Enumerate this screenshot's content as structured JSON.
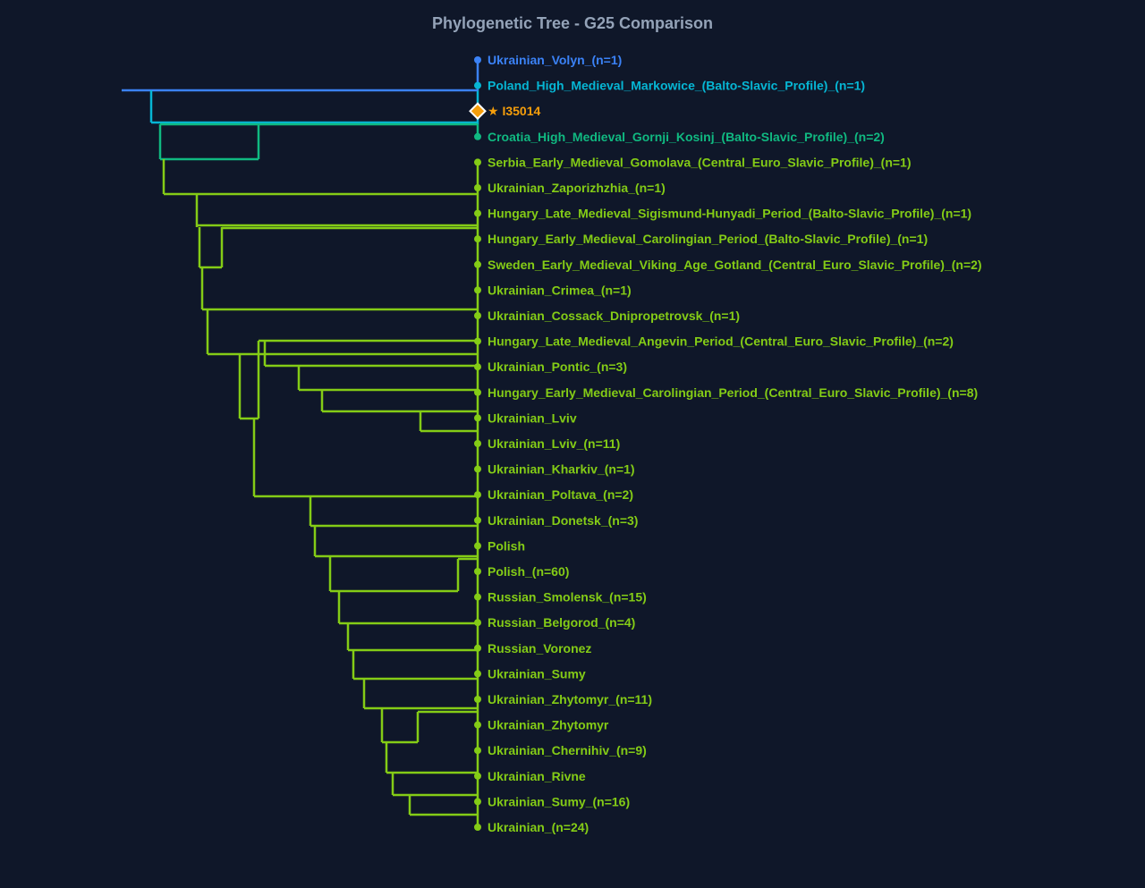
{
  "title": "Phylogenetic Tree - G25 Comparison",
  "colors": {
    "background": "#0f1729",
    "blue": "#3b82f6",
    "cyan": "#06b6d4",
    "teal": "#10b981",
    "green": "#84cc16",
    "target": "#f59e0b"
  },
  "leaves": [
    {
      "label": "Ukrainian_Volyn_(n=1)",
      "color": "#3b82f6"
    },
    {
      "label": "Poland_High_Medieval_Markowice_(Balto-Slavic_Profile)_(n=1)",
      "color": "#06b6d4"
    },
    {
      "label": "★ I35014",
      "color": "#f59e0b",
      "target": true,
      "marker": "diamond-icon"
    },
    {
      "label": "Croatia_High_Medieval_Gornji_Kosinj_(Balto-Slavic_Profile)_(n=2)",
      "color": "#10b981"
    },
    {
      "label": "Serbia_Early_Medieval_Gomolava_(Central_Euro_Slavic_Profile)_(n=1)",
      "color": "#84cc16"
    },
    {
      "label": "Ukrainian_Zaporizhzhia_(n=1)",
      "color": "#84cc16"
    },
    {
      "label": "Hungary_Late_Medieval_Sigismund-Hunyadi_Period_(Balto-Slavic_Profile)_(n=1)",
      "color": "#84cc16"
    },
    {
      "label": "Hungary_Early_Medieval_Carolingian_Period_(Balto-Slavic_Profile)_(n=1)",
      "color": "#84cc16"
    },
    {
      "label": "Sweden_Early_Medieval_Viking_Age_Gotland_(Central_Euro_Slavic_Profile)_(n=2)",
      "color": "#84cc16"
    },
    {
      "label": "Ukrainian_Crimea_(n=1)",
      "color": "#84cc16"
    },
    {
      "label": "Ukrainian_Cossack_Dnipropetrovsk_(n=1)",
      "color": "#84cc16"
    },
    {
      "label": "Hungary_Late_Medieval_Angevin_Period_(Central_Euro_Slavic_Profile)_(n=2)",
      "color": "#84cc16"
    },
    {
      "label": "Ukrainian_Pontic_(n=3)",
      "color": "#84cc16"
    },
    {
      "label": "Hungary_Early_Medieval_Carolingian_Period_(Central_Euro_Slavic_Profile)_(n=8)",
      "color": "#84cc16"
    },
    {
      "label": "Ukrainian_Lviv",
      "color": "#84cc16"
    },
    {
      "label": "Ukrainian_Lviv_(n=11)",
      "color": "#84cc16"
    },
    {
      "label": "Ukrainian_Kharkiv_(n=1)",
      "color": "#84cc16"
    },
    {
      "label": "Ukrainian_Poltava_(n=2)",
      "color": "#84cc16"
    },
    {
      "label": "Ukrainian_Donetsk_(n=3)",
      "color": "#84cc16"
    },
    {
      "label": "Polish",
      "color": "#84cc16"
    },
    {
      "label": "Polish_(n=60)",
      "color": "#84cc16"
    },
    {
      "label": "Russian_Smolensk_(n=15)",
      "color": "#84cc16"
    },
    {
      "label": "Russian_Belgorod_(n=4)",
      "color": "#84cc16"
    },
    {
      "label": "Russian_Voronez",
      "color": "#84cc16"
    },
    {
      "label": "Ukrainian_Sumy",
      "color": "#84cc16"
    },
    {
      "label": "Ukrainian_Zhytomyr_(n=11)",
      "color": "#84cc16"
    },
    {
      "label": "Ukrainian_Zhytomyr",
      "color": "#84cc16"
    },
    {
      "label": "Ukrainian_Chernihiv_(n=9)",
      "color": "#84cc16"
    },
    {
      "label": "Ukrainian_Rivne",
      "color": "#84cc16"
    },
    {
      "label": "Ukrainian_Sumy_(n=16)",
      "color": "#84cc16"
    },
    {
      "label": "Ukrainian_(n=24)",
      "color": "#84cc16"
    }
  ]
}
